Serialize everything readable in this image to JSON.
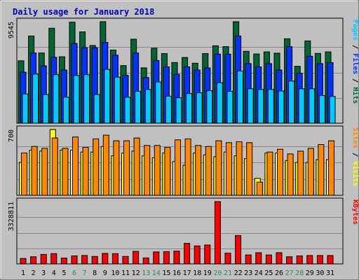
{
  "colors": {
    "background": "#C0C0C0",
    "title": "#0000C0",
    "hits": "#006633",
    "files": "#0033FF",
    "pages": "#00CCFF",
    "visits": "#FFFF00",
    "sites": "#FF8800",
    "kbytes": "#FF0000",
    "weekend_day": "#2E8B57",
    "weekday": "#000000"
  },
  "chart_data": {
    "title": "Daily usage for January 2018",
    "days": [
      1,
      2,
      3,
      4,
      5,
      6,
      7,
      8,
      9,
      10,
      11,
      12,
      13,
      14,
      15,
      16,
      17,
      18,
      19,
      20,
      21,
      22,
      23,
      24,
      25,
      26,
      27,
      28,
      29,
      30,
      31
    ],
    "weekend_days": [
      6,
      7,
      13,
      14,
      20,
      21,
      27,
      28
    ],
    "panels": [
      {
        "type": "bar",
        "ymax_label": "9545",
        "ymax": 9545,
        "axis_labels": [
          {
            "text": "Pages",
            "color": "#00CCFF"
          },
          {
            "text": " / ",
            "color": "#000000"
          },
          {
            "text": "Files",
            "color": "#0033FF"
          },
          {
            "text": " / ",
            "color": "#000000"
          },
          {
            "text": "Hits",
            "color": "#006633"
          }
        ],
        "series": [
          {
            "name": "Hits",
            "color": "#006633",
            "values": [
              5870,
              8200,
              6600,
              8930,
              6250,
              9500,
              8590,
              7310,
              9545,
              6880,
              5420,
              7900,
              5210,
              7050,
              6550,
              5710,
              6180,
              5640,
              6550,
              7280,
              7200,
              9545,
              6760,
              6510,
              6710,
              6580,
              7940,
              5350,
              7740,
              6560,
              6710
            ]
          },
          {
            "name": "Files",
            "color": "#0033FF",
            "values": [
              4800,
              6600,
              5400,
              6200,
              5000,
              7500,
              7100,
              7100,
              7600,
              6400,
              4500,
              6600,
              4300,
              5900,
              5300,
              4600,
              5300,
              5000,
              5200,
              6500,
              6500,
              8200,
              5600,
              5300,
              5600,
              5000,
              7200,
              4700,
              6300,
              5600,
              5700
            ]
          },
          {
            "name": "Pages",
            "color": "#00CCFF",
            "values": [
              2750,
              4620,
              2700,
              4560,
              2450,
              4490,
              4560,
              2700,
              5060,
              4330,
              2450,
              3000,
              3170,
              3880,
              2540,
              2390,
              2790,
              2860,
              3060,
              3810,
              3000,
              4910,
              3240,
              3170,
              3170,
              3030,
              3960,
              3240,
              3240,
              2600,
              2520
            ]
          }
        ]
      },
      {
        "type": "bar",
        "ymax_label": "700",
        "ymax": 700,
        "axis_labels": [
          {
            "text": "Sites",
            "color": "#FF8800"
          },
          {
            "text": " / ",
            "color": "#000000"
          },
          {
            "text": "Visits",
            "color": "#FFFF00"
          }
        ],
        "series": [
          {
            "name": "Visits",
            "color": "#FFFF00",
            "values": [
              350,
              480,
              470,
              700,
              480,
              480,
              460,
              460,
              520,
              420,
              450,
              470,
              420,
              400,
              450,
              360,
              320,
              450,
              430,
              410,
              460,
              420,
              390,
              180,
              450,
              450,
              370,
              350,
              350,
              380,
              380
            ]
          },
          {
            "name": "Sites",
            "color": "#FF8800",
            "values": [
              450,
              520,
              500,
              610,
              500,
              620,
              510,
              600,
              640,
              580,
              580,
              610,
              530,
              530,
              510,
              590,
              600,
              530,
              520,
              580,
              560,
              570,
              560,
              140,
              460,
              490,
              440,
              470,
              500,
              540,
              580
            ]
          }
        ]
      },
      {
        "type": "bar",
        "ymax_label": "3328811",
        "ymax": 3328811,
        "axis_labels": [
          {
            "text": "KBytes",
            "color": "#FF0000"
          }
        ],
        "series": [
          {
            "name": "KBytes",
            "color": "#FF0000",
            "values": [
              290000,
              380000,
              510000,
              550000,
              310000,
              430000,
              450000,
              400000,
              560000,
              550000,
              400000,
              670000,
              320000,
              640000,
              660000,
              680000,
              1100000,
              960000,
              1010000,
              3328811,
              580000,
              1520000,
              480000,
              600000,
              480000,
              600000,
              380000,
              430000,
              450000,
              450000,
              450000
            ]
          }
        ]
      }
    ]
  }
}
